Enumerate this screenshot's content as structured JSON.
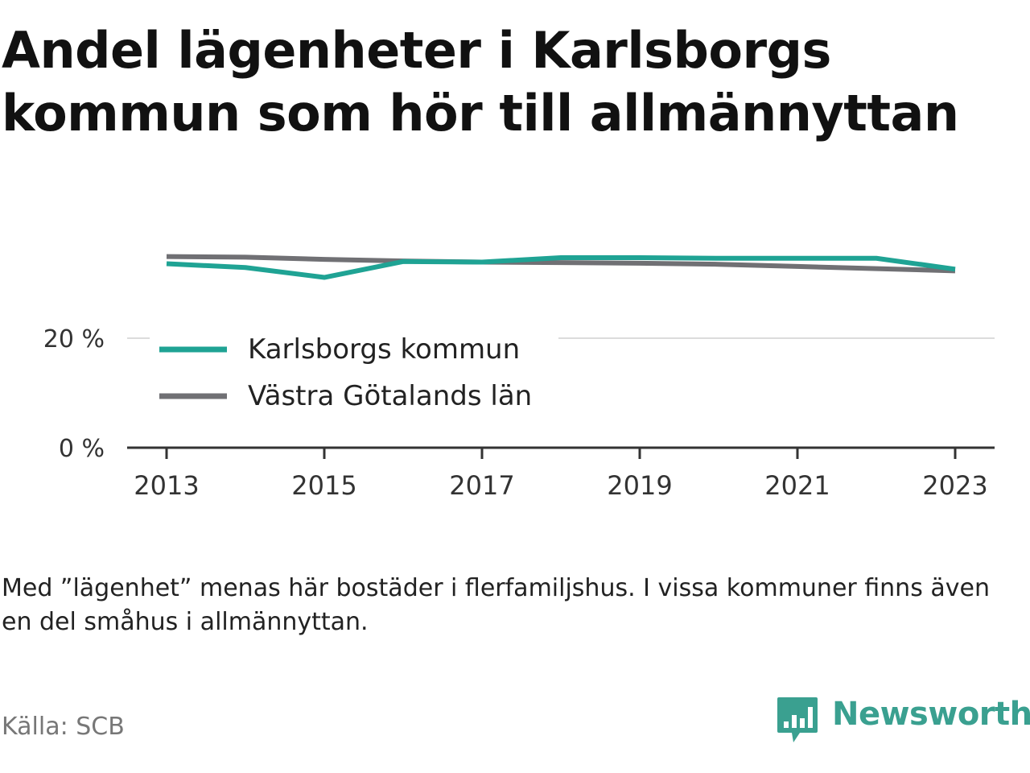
{
  "title": "Andel lägenheter i Karlsborgs kommun som hör till allmännyttan",
  "note": "Med ”lägenhet” menas här bostäder i flerfamiljshus. I vissa kommuner finns även en del småhus i allmännyttan.",
  "source": "Källa: SCB",
  "brand": {
    "name": "Newsworthy",
    "icon": "newsworthy-logo-icon",
    "color": "#3aa090"
  },
  "chart_data": {
    "type": "line",
    "x": [
      2013,
      2014,
      2015,
      2016,
      2017,
      2018,
      2019,
      2020,
      2021,
      2022,
      2023
    ],
    "xticks": [
      2013,
      2015,
      2017,
      2019,
      2021,
      2023
    ],
    "xtick_labels": [
      "2013",
      "2015",
      "2017",
      "2019",
      "2021",
      "2023"
    ],
    "xlim": [
      2012.5,
      2023.5
    ],
    "ylim": [
      0,
      40
    ],
    "yticks": [
      0,
      20
    ],
    "ytick_labels": [
      "0 %",
      "20 %"
    ],
    "grid": true,
    "legend_position": "inside-left",
    "series": [
      {
        "name": "Karlsborgs kommun",
        "color": "#1fa394",
        "values": [
          33.6,
          32.9,
          31.1,
          34.0,
          33.9,
          34.7,
          34.7,
          34.6,
          34.6,
          34.6,
          32.6
        ]
      },
      {
        "name": "Västra Götalands län",
        "color": "#707074",
        "values": [
          34.9,
          34.8,
          34.4,
          34.1,
          33.9,
          33.8,
          33.7,
          33.5,
          33.1,
          32.7,
          32.3
        ]
      }
    ]
  }
}
